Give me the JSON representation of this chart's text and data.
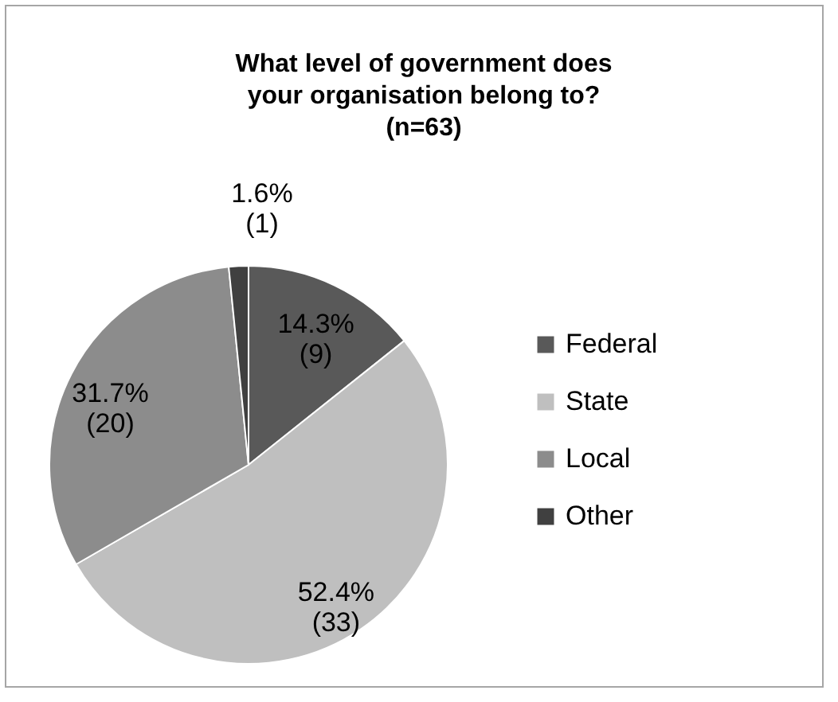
{
  "chart_data": {
    "type": "pie",
    "title": "What level of government does your organisation belong to? (n=63)",
    "categories": [
      "Federal",
      "State",
      "Local",
      "Other"
    ],
    "values": [
      9,
      33,
      20,
      1
    ],
    "colors": [
      "#595959",
      "#bfbfbf",
      "#8c8c8c",
      "#404040"
    ],
    "value_labels": [
      "14.3%\n(9)",
      "52.4%\n(33)",
      "31.7%\n(20)",
      "1.6%\n(1)"
    ],
    "legend": "right"
  }
}
